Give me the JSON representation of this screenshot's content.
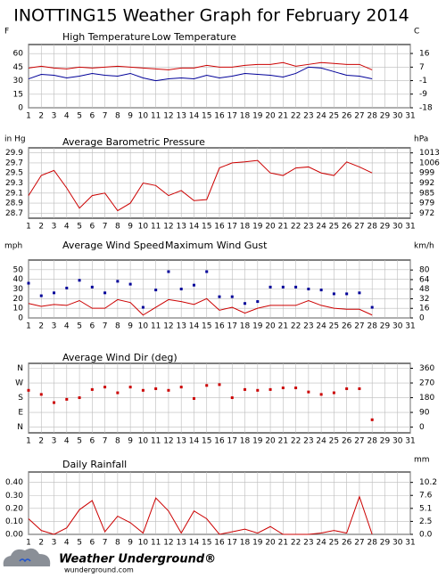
{
  "title": "INOTTING15 Weather Graph for February 2014",
  "chart_data": [
    {
      "type": "line",
      "ylabel": "F",
      "y2label": "C",
      "x": [
        1,
        2,
        3,
        4,
        5,
        6,
        7,
        8,
        9,
        10,
        11,
        12,
        13,
        14,
        15,
        16,
        17,
        18,
        19,
        20,
        21,
        22,
        23,
        24,
        25,
        26,
        27,
        28
      ],
      "xlim": [
        1,
        31
      ],
      "xticks": [
        1,
        2,
        3,
        4,
        5,
        6,
        7,
        8,
        9,
        10,
        11,
        12,
        13,
        14,
        15,
        16,
        17,
        18,
        19,
        20,
        21,
        22,
        23,
        24,
        25,
        26,
        27,
        28,
        29,
        30,
        31
      ],
      "ylim": [
        0,
        70
      ],
      "yticks": [
        0,
        15,
        30,
        45,
        60
      ],
      "y2lim": [
        -17.8,
        21.1
      ],
      "y2ticks": [
        {
          "value": 15.6,
          "label": "16"
        },
        {
          "value": 7.2,
          "label": "7"
        },
        {
          "value": -1.1,
          "label": "-1"
        },
        {
          "value": -9.4,
          "label": "-9"
        },
        {
          "value": -17.8,
          "label": "-18"
        }
      ],
      "grid": true,
      "series": [
        {
          "name": "High Temperature",
          "color": "#cc0000",
          "values": [
            44,
            46,
            44,
            43,
            45,
            44,
            45,
            46,
            45,
            44,
            43,
            42,
            44,
            44,
            47,
            45,
            45,
            47,
            48,
            48,
            50,
            46,
            48,
            50,
            49,
            48,
            48,
            42
          ]
        },
        {
          "name": "Low Temperature",
          "color": "#000099",
          "values": [
            32,
            37,
            36,
            33,
            35,
            38,
            36,
            35,
            38,
            33,
            30,
            32,
            33,
            32,
            36,
            33,
            35,
            38,
            37,
            36,
            34,
            38,
            45,
            44,
            40,
            36,
            35,
            32
          ]
        }
      ]
    },
    {
      "type": "line",
      "ylabel": "in Hg",
      "y2label": "hPa",
      "x": [
        1,
        2,
        3,
        4,
        5,
        6,
        7,
        8,
        9,
        10,
        11,
        12,
        13,
        14,
        15,
        16,
        17,
        18,
        19,
        20,
        21,
        22,
        23,
        24,
        25,
        26,
        27,
        28
      ],
      "xlim": [
        1,
        31
      ],
      "xticks": [
        1,
        2,
        3,
        4,
        5,
        6,
        7,
        8,
        9,
        10,
        11,
        12,
        13,
        14,
        15,
        16,
        17,
        18,
        19,
        20,
        21,
        22,
        23,
        24,
        25,
        26,
        27,
        28,
        29,
        30,
        31
      ],
      "ylim": [
        28.6,
        30.0
      ],
      "yticks": [
        28.7,
        28.9,
        29.1,
        29.3,
        29.5,
        29.7,
        29.9
      ],
      "y2lim": [
        968.5,
        1015.9
      ],
      "y2ticks": [
        {
          "value": 971.9,
          "label": "972"
        },
        {
          "value": 978.6,
          "label": "979"
        },
        {
          "value": 985.4,
          "label": "985"
        },
        {
          "value": 992.2,
          "label": "992"
        },
        {
          "value": 999.0,
          "label": "999"
        },
        {
          "value": 1005.8,
          "label": "1006"
        },
        {
          "value": 1012.5,
          "label": "1013"
        }
      ],
      "grid": true,
      "series": [
        {
          "name": "Average Barometric Pressure",
          "color": "#cc0000",
          "values": [
            29.05,
            29.45,
            29.55,
            29.2,
            28.8,
            29.05,
            29.1,
            28.75,
            28.9,
            29.3,
            29.25,
            29.05,
            29.15,
            28.95,
            28.97,
            29.6,
            29.7,
            29.72,
            29.75,
            29.5,
            29.45,
            29.6,
            29.62,
            29.5,
            29.45,
            29.72,
            29.62,
            29.5
          ]
        }
      ]
    },
    {
      "type": "line",
      "ylabel": "mph",
      "y2label": "km/h",
      "x": [
        1,
        2,
        3,
        4,
        5,
        6,
        7,
        8,
        9,
        10,
        11,
        12,
        13,
        14,
        15,
        16,
        17,
        18,
        19,
        20,
        21,
        22,
        23,
        24,
        25,
        26,
        27,
        28
      ],
      "xlim": [
        1,
        31
      ],
      "xticks": [
        1,
        2,
        3,
        4,
        5,
        6,
        7,
        8,
        9,
        10,
        11,
        12,
        13,
        14,
        15,
        16,
        17,
        18,
        19,
        20,
        21,
        22,
        23,
        24,
        25,
        26,
        27,
        28,
        29,
        30,
        31
      ],
      "ylim": [
        0,
        60
      ],
      "yticks": [
        0,
        10,
        20,
        30,
        40,
        50
      ],
      "y2lim": [
        0,
        96.6
      ],
      "y2ticks": [
        0,
        16,
        32,
        48,
        64,
        80
      ],
      "grid": true,
      "series": [
        {
          "name": "Average Wind Speed",
          "color": "#cc0000",
          "type": "line",
          "values": [
            15,
            12,
            14,
            13,
            18,
            10,
            10,
            19,
            16,
            3,
            11,
            19,
            17,
            14,
            20,
            8,
            11,
            5,
            10,
            13,
            13,
            13,
            18,
            13,
            10,
            9,
            9,
            3
          ]
        },
        {
          "name": "Maximum Wind Gust",
          "color": "#000099",
          "type": "scatter",
          "values": [
            36,
            23,
            26,
            31,
            39,
            32,
            26,
            38,
            35,
            11,
            29,
            48,
            30,
            34,
            48,
            22,
            22,
            15,
            17,
            32,
            32,
            32,
            30,
            29,
            25,
            25,
            26,
            11
          ]
        }
      ]
    },
    {
      "type": "scatter",
      "x": [
        1,
        2,
        3,
        4,
        5,
        6,
        7,
        8,
        9,
        10,
        11,
        12,
        13,
        14,
        15,
        16,
        17,
        18,
        19,
        20,
        21,
        22,
        23,
        24,
        25,
        26,
        27,
        28
      ],
      "xlim": [
        1,
        31
      ],
      "xticks": [
        1,
        2,
        3,
        4,
        5,
        6,
        7,
        8,
        9,
        10,
        11,
        12,
        13,
        14,
        15,
        16,
        17,
        18,
        19,
        20,
        21,
        22,
        23,
        24,
        25,
        26,
        27,
        28,
        29,
        30,
        31
      ],
      "ylim": [
        -35,
        390
      ],
      "yticks": [
        {
          "value": 360,
          "label": "N"
        },
        {
          "value": 270,
          "label": "W"
        },
        {
          "value": 180,
          "label": "S"
        },
        {
          "value": 90,
          "label": "E"
        },
        {
          "value": 0,
          "label": "N"
        }
      ],
      "ytick_color": "#cc0000",
      "y2lim": [
        -35,
        390
      ],
      "y2ticks": [
        0,
        90,
        180,
        270,
        360
      ],
      "grid": true,
      "series": [
        {
          "name": "Average Wind Dir (deg)",
          "color": "#cc0000",
          "values": [
            225,
            200,
            150,
            170,
            180,
            230,
            245,
            210,
            245,
            225,
            235,
            225,
            245,
            175,
            255,
            260,
            180,
            230,
            225,
            230,
            240,
            240,
            215,
            200,
            210,
            235,
            235,
            45
          ]
        }
      ]
    },
    {
      "type": "line",
      "y2label": "mm",
      "x": [
        1,
        2,
        3,
        4,
        5,
        6,
        7,
        8,
        9,
        10,
        11,
        12,
        13,
        14,
        15,
        16,
        17,
        18,
        19,
        20,
        21,
        22,
        23,
        24,
        25,
        26,
        27,
        28
      ],
      "xlim": [
        1,
        31
      ],
      "xticks": [
        1,
        2,
        3,
        4,
        5,
        6,
        7,
        8,
        9,
        10,
        11,
        12,
        13,
        14,
        15,
        16,
        17,
        18,
        19,
        20,
        21,
        22,
        23,
        24,
        25,
        26,
        27,
        28,
        29,
        30,
        31
      ],
      "ylim": [
        0,
        0.48
      ],
      "yticks": [
        {
          "value": 0,
          "label": "0.00"
        },
        {
          "value": 0.1,
          "label": "0.10"
        },
        {
          "value": 0.2,
          "label": "0.20"
        },
        {
          "value": 0.3,
          "label": "0.30"
        },
        {
          "value": 0.4,
          "label": "0.40"
        }
      ],
      "y2lim": [
        0,
        12.19
      ],
      "y2ticks": [
        {
          "value": 0,
          "label": "0.0"
        },
        {
          "value": 2.54,
          "label": "2.5"
        },
        {
          "value": 5.08,
          "label": "5.1"
        },
        {
          "value": 7.62,
          "label": "7.6"
        },
        {
          "value": 10.16,
          "label": "10.2"
        }
      ],
      "grid": true,
      "series": [
        {
          "name": "Daily Rainfall",
          "color": "#cc0000",
          "values": [
            0.12,
            0.03,
            0.0,
            0.05,
            0.19,
            0.26,
            0.02,
            0.14,
            0.09,
            0.01,
            0.28,
            0.18,
            0.01,
            0.18,
            0.12,
            0.0,
            0.02,
            0.04,
            0.01,
            0.06,
            0.0,
            0.0,
            0.0,
            0.01,
            0.03,
            0.01,
            0.29,
            0.0
          ]
        }
      ]
    }
  ],
  "footer": {
    "brand": "Weather Underground®",
    "url": "wunderground.com"
  }
}
